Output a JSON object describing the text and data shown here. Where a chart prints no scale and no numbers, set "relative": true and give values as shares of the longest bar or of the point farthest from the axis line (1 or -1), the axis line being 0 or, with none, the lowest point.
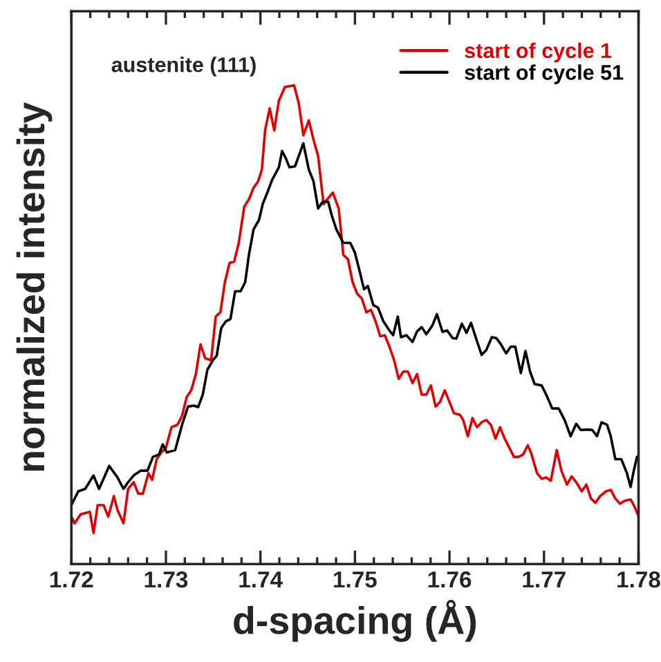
{
  "chart_data": {
    "type": "line",
    "xlabel": "d-spacing (Å)",
    "ylabel": "normalized intensity",
    "relative": true,
    "tick_labels": "x",
    "legend": "top right",
    "line_style": "solid",
    "annotations": [
      "austenite (111)"
    ],
    "xlim": [
      1.72,
      1.78
    ],
    "xticks": [
      1.72,
      1.73,
      1.74,
      1.75,
      1.76,
      1.77,
      1.78
    ],
    "series": [
      {
        "name": "start of cycle 1",
        "color": "#e00000",
        "x": [
          1.72,
          1.72034,
          1.72098,
          1.72195,
          1.72234,
          1.72278,
          1.72341,
          1.7239,
          1.72449,
          1.72488,
          1.72551,
          1.726,
          1.72659,
          1.72707,
          1.72756,
          1.72815,
          1.72854,
          1.72902,
          1.72951,
          1.73,
          1.73059,
          1.73122,
          1.73171,
          1.7322,
          1.73268,
          1.73317,
          1.73366,
          1.73415,
          1.73478,
          1.73527,
          1.73576,
          1.73624,
          1.73673,
          1.73722,
          1.73771,
          1.73829,
          1.73878,
          1.73927,
          1.73976,
          1.74015,
          1.74049,
          1.74098,
          1.74146,
          1.74195,
          1.74259,
          1.74356,
          1.74405,
          1.74454,
          1.74512,
          1.74561,
          1.7461,
          1.74668,
          1.74707,
          1.74766,
          1.74828,
          1.74877,
          1.74926,
          1.74975,
          1.75023,
          1.75072,
          1.75121,
          1.7517,
          1.75218,
          1.75267,
          1.75316,
          1.75365,
          1.75414,
          1.75462,
          1.75511,
          1.7556,
          1.75609,
          1.75657,
          1.75706,
          1.75755,
          1.75804,
          1.75853,
          1.75901,
          1.7595,
          1.75999,
          1.76048,
          1.76111,
          1.76145,
          1.76194,
          1.76243,
          1.76292,
          1.7634,
          1.76389,
          1.76438,
          1.76487,
          1.76535,
          1.76584,
          1.76633,
          1.76682,
          1.76731,
          1.76779,
          1.76828,
          1.76862,
          1.76926,
          1.76975,
          1.77023,
          1.77072,
          1.77135,
          1.77184,
          1.77243,
          1.77292,
          1.77341,
          1.77399,
          1.77448,
          1.77496,
          1.77545,
          1.77594,
          1.77657,
          1.77706,
          1.77755,
          1.77804,
          1.77852,
          1.77916,
          1.7795,
          1.77999
        ],
        "values": [
          0.099,
          0.085,
          0.104,
          0.109,
          0.065,
          0.123,
          0.123,
          0.099,
          0.142,
          0.113,
          0.085,
          0.157,
          0.171,
          0.147,
          0.147,
          0.19,
          0.176,
          0.219,
          0.233,
          0.243,
          0.286,
          0.291,
          0.31,
          0.349,
          0.363,
          0.397,
          0.459,
          0.43,
          0.426,
          0.517,
          0.526,
          0.589,
          0.629,
          0.632,
          0.671,
          0.747,
          0.762,
          0.786,
          0.8,
          0.824,
          0.906,
          0.952,
          0.906,
          0.968,
          0.997,
          1.0,
          0.963,
          0.896,
          0.927,
          0.887,
          0.853,
          0.752,
          0.762,
          0.776,
          0.743,
          0.646,
          0.637,
          0.589,
          0.565,
          0.555,
          0.526,
          0.531,
          0.507,
          0.476,
          0.478,
          0.454,
          0.426,
          0.387,
          0.402,
          0.402,
          0.378,
          0.397,
          0.354,
          0.354,
          0.373,
          0.329,
          0.339,
          0.363,
          0.339,
          0.315,
          0.312,
          0.301,
          0.267,
          0.305,
          0.286,
          0.296,
          0.301,
          0.291,
          0.262,
          0.286,
          0.262,
          0.243,
          0.224,
          0.224,
          0.229,
          0.248,
          0.233,
          0.19,
          0.178,
          0.181,
          0.174,
          0.238,
          0.195,
          0.166,
          0.183,
          0.171,
          0.152,
          0.166,
          0.137,
          0.128,
          0.142,
          0.152,
          0.155,
          0.137,
          0.126,
          0.132,
          0.135,
          0.123,
          0.101
        ]
      },
      {
        "name": "start of cycle 51",
        "color": "#000000",
        "x": [
          1.72,
          1.72073,
          1.72146,
          1.72234,
          1.72293,
          1.724,
          1.72488,
          1.72551,
          1.726,
          1.72659,
          1.72732,
          1.72805,
          1.72863,
          1.72927,
          1.72966,
          1.7301,
          1.73098,
          1.73171,
          1.73234,
          1.73293,
          1.73341,
          1.7339,
          1.73439,
          1.73498,
          1.73537,
          1.73585,
          1.73634,
          1.73683,
          1.73732,
          1.7379,
          1.73839,
          1.73878,
          1.73927,
          1.73985,
          1.74024,
          1.74073,
          1.74122,
          1.74195,
          1.74229,
          1.74268,
          1.74307,
          1.74366,
          1.74454,
          1.74512,
          1.74561,
          1.7461,
          1.74659,
          1.74717,
          1.74755,
          1.74804,
          1.74877,
          1.7495,
          1.74999,
          1.75048,
          1.75096,
          1.75136,
          1.75194,
          1.75243,
          1.75301,
          1.75365,
          1.75404,
          1.75453,
          1.75487,
          1.75545,
          1.75609,
          1.75657,
          1.75706,
          1.75755,
          1.75818,
          1.75867,
          1.75926,
          1.75975,
          1.76033,
          1.76072,
          1.76131,
          1.7618,
          1.76228,
          1.76277,
          1.7634,
          1.76389,
          1.76448,
          1.76496,
          1.76545,
          1.76599,
          1.76648,
          1.76696,
          1.76755,
          1.76804,
          1.76853,
          1.76901,
          1.76975,
          1.77023,
          1.77087,
          1.77155,
          1.77218,
          1.77282,
          1.77341,
          1.77389,
          1.77462,
          1.77511,
          1.7756,
          1.77609,
          1.77667,
          1.77706,
          1.77755,
          1.77818,
          1.77877,
          1.77916,
          1.7795,
          1.77984,
          1.78
        ],
        "values": [
          0.123,
          0.152,
          0.157,
          0.185,
          0.157,
          0.205,
          0.181,
          0.157,
          0.171,
          0.185,
          0.195,
          0.195,
          0.224,
          0.229,
          0.25,
          0.233,
          0.238,
          0.291,
          0.329,
          0.331,
          0.328,
          0.354,
          0.406,
          0.426,
          0.435,
          0.493,
          0.507,
          0.512,
          0.57,
          0.57,
          0.589,
          0.646,
          0.699,
          0.719,
          0.752,
          0.776,
          0.802,
          0.829,
          0.863,
          0.848,
          0.829,
          0.831,
          0.879,
          0.824,
          0.8,
          0.743,
          0.757,
          0.757,
          0.728,
          0.699,
          0.671,
          0.671,
          0.651,
          0.613,
          0.574,
          0.581,
          0.541,
          0.536,
          0.507,
          0.488,
          0.478,
          0.517,
          0.474,
          0.478,
          0.464,
          0.486,
          0.495,
          0.48,
          0.498,
          0.522,
          0.485,
          0.488,
          0.472,
          0.471,
          0.502,
          0.483,
          0.504,
          0.474,
          0.437,
          0.447,
          0.474,
          0.472,
          0.459,
          0.44,
          0.454,
          0.454,
          0.399,
          0.445,
          0.402,
          0.376,
          0.373,
          0.354,
          0.325,
          0.325,
          0.301,
          0.267,
          0.293,
          0.28,
          0.281,
          0.28,
          0.267,
          0.296,
          0.291,
          0.267,
          0.219,
          0.219,
          0.19,
          0.161,
          0.195,
          0.224,
          0.224
        ]
      }
    ]
  }
}
